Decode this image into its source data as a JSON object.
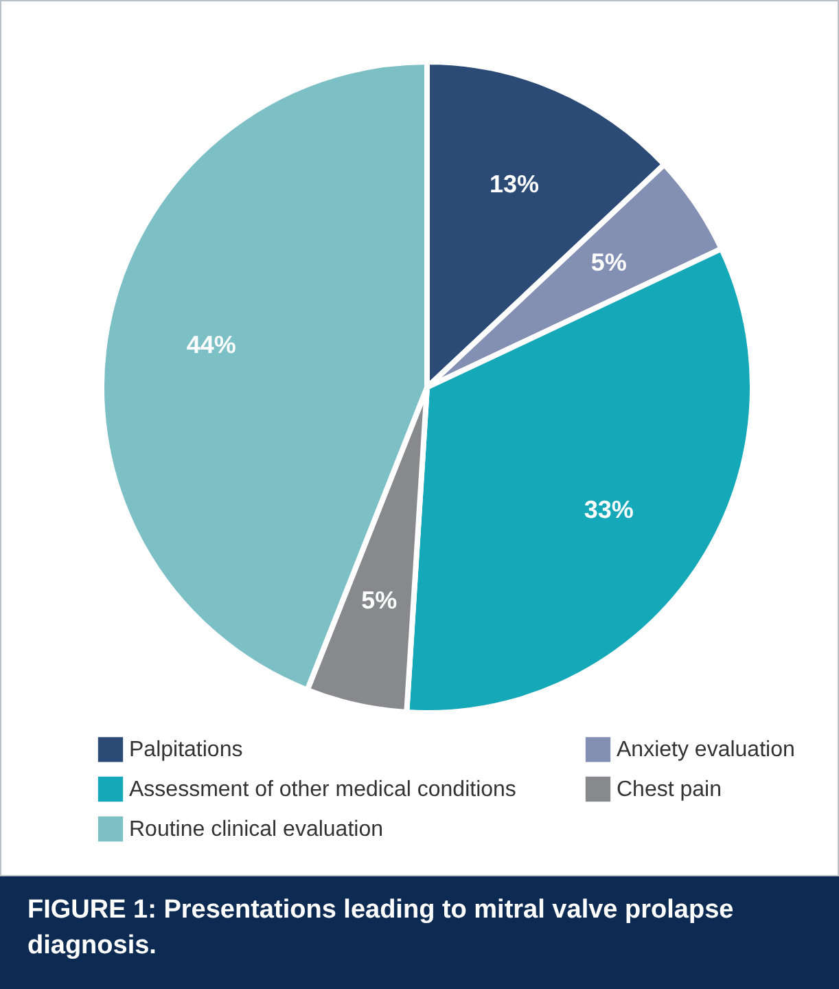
{
  "chart_data": {
    "type": "pie",
    "title": "FIGURE 1: Presentations leading to mitral valve prolapse diagnosis.",
    "categories": [
      "Palpitations",
      "Anxiety evaluation",
      "Assessment of other medical conditions",
      "Chest pain",
      "Routine clinical evaluation"
    ],
    "values": [
      13,
      5,
      33,
      5,
      44
    ],
    "colors": [
      "#2b4a76",
      "#8490b3",
      "#14a8b8",
      "#87898c",
      "#7cbfc4"
    ],
    "value_labels": [
      "13%",
      "5%",
      "33%",
      "5%",
      "44%"
    ],
    "legend": "bottom"
  }
}
